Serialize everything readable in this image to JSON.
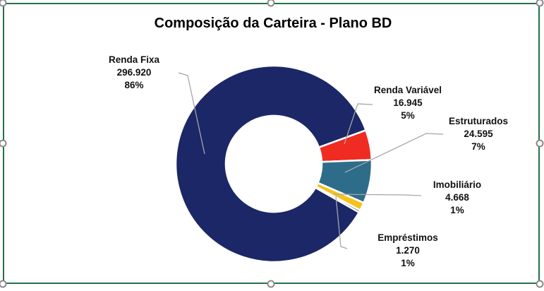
{
  "window": {
    "background_color": "#FFFFFF",
    "selection_frame_color": "#26714A",
    "selection_handle_color": "#8A8A8A"
  },
  "chart_data": {
    "type": "pie",
    "subtype": "donut",
    "title": "Composição da Carteira - Plano BD",
    "categories": [
      "Renda Fixa",
      "Renda Variável",
      "Estruturados",
      "Imobiliário",
      "Empréstimos"
    ],
    "values": [
      296920,
      16945,
      24595,
      4668,
      1270
    ],
    "slices": [
      {
        "label": "Renda Fixa",
        "value": 296920,
        "value_label": "296.920",
        "percent_label": "86%",
        "color": "#1B2766"
      },
      {
        "label": "Renda Variável",
        "value": 16945,
        "value_label": "16.945",
        "percent_label": "5%",
        "color": "#EF2B22"
      },
      {
        "label": "Estruturados",
        "value": 24595,
        "value_label": "24.595",
        "percent_label": "7%",
        "color": "#2E6D8A"
      },
      {
        "label": "Imobiliário",
        "value": 4668,
        "value_label": "4.668",
        "percent_label": "1%",
        "color": "#F5C21D"
      },
      {
        "label": "Empréstimos",
        "value": 1270,
        "value_label": "1.270",
        "percent_label": "1%",
        "color": "#1B2766"
      }
    ],
    "start_angle_deg": 119.6,
    "hole_ratio": 0.49,
    "slice_border_color": "#FFFFFF",
    "leader_line_color": "#A6A6A6",
    "legend": "none",
    "labels_position": "outside-callout"
  }
}
